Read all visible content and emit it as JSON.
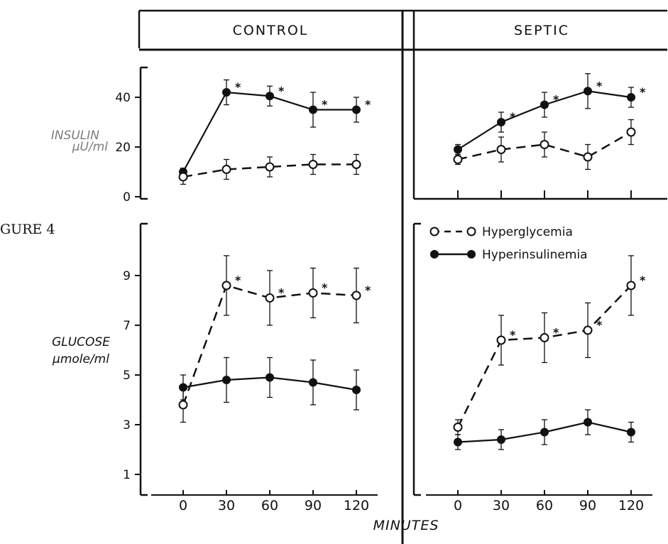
{
  "figure_label": "GURE 4",
  "panels": [
    {
      "header": "CONTROL"
    },
    {
      "header": "SEPTIC"
    }
  ],
  "top_ylabel": [
    "INSULIN",
    "µU/ml"
  ],
  "bottom_ylabel": [
    "GLUCOSE",
    "µmole/ml"
  ],
  "xlabel": "MINUTES",
  "legend": [
    {
      "label": "Hyperglycemia",
      "marker": "open",
      "line": "dashed"
    },
    {
      "label": "Hyperinsulinemia",
      "marker": "filled",
      "line": "solid"
    }
  ],
  "chart_data": [
    {
      "type": "line",
      "panel": "CONTROL",
      "row": "insulin",
      "x": [
        0,
        30,
        60,
        90,
        120
      ],
      "x_ticks": [
        0,
        30,
        60,
        90,
        120
      ],
      "ylim": [
        0,
        50
      ],
      "y_ticks": [
        0,
        20,
        40
      ],
      "y_tick_labels": [
        "0",
        "20",
        "40"
      ],
      "series": [
        {
          "name": "Hyperinsulinemia",
          "values": [
            10,
            42,
            40.5,
            35,
            35
          ],
          "err": [
            1.5,
            5,
            4,
            7,
            5
          ],
          "sig": [
            false,
            true,
            true,
            true,
            true
          ]
        },
        {
          "name": "Hyperglycemia",
          "values": [
            8,
            11,
            12,
            13,
            13
          ],
          "err": [
            3,
            4,
            4,
            4,
            4
          ],
          "sig": [
            false,
            false,
            false,
            false,
            false
          ]
        }
      ]
    },
    {
      "type": "line",
      "panel": "SEPTIC",
      "row": "insulin",
      "x": [
        0,
        30,
        60,
        90,
        120
      ],
      "x_ticks": [
        0,
        30,
        60,
        90,
        120
      ],
      "ylim": [
        0,
        50
      ],
      "y_ticks": [
        0,
        20,
        40
      ],
      "y_tick_labels": [
        "0",
        "20",
        "40"
      ],
      "series": [
        {
          "name": "Hyperinsulinemia",
          "values": [
            19,
            30,
            37,
            42.5,
            40
          ],
          "err": [
            2,
            4,
            5,
            7,
            4
          ],
          "sig": [
            false,
            true,
            true,
            true,
            true
          ]
        },
        {
          "name": "Hyperglycemia",
          "values": [
            15,
            19,
            21,
            16,
            26
          ],
          "err": [
            2,
            5,
            5,
            5,
            5
          ],
          "sig": [
            false,
            false,
            false,
            false,
            false
          ]
        }
      ]
    },
    {
      "type": "line",
      "panel": "CONTROL",
      "row": "glucose",
      "x": [
        0,
        30,
        60,
        90,
        120
      ],
      "x_ticks": [
        0,
        30,
        60,
        90,
        120
      ],
      "ylim": [
        0.6,
        10.6
      ],
      "y_ticks": [
        1,
        3,
        5,
        7,
        9
      ],
      "y_tick_labels": [
        "1",
        "3",
        "5",
        "7",
        "9"
      ],
      "series": [
        {
          "name": "Hyperglycemia",
          "values": [
            3.8,
            8.6,
            8.1,
            8.3,
            8.2
          ],
          "err": [
            0.7,
            1.2,
            1.1,
            1.0,
            1.1
          ],
          "sig": [
            false,
            true,
            true,
            true,
            true
          ]
        },
        {
          "name": "Hyperinsulinemia",
          "values": [
            4.5,
            4.8,
            4.9,
            4.7,
            4.4
          ],
          "err": [
            0.5,
            0.9,
            0.8,
            0.9,
            0.8
          ],
          "sig": [
            false,
            false,
            false,
            false,
            false
          ]
        }
      ]
    },
    {
      "type": "line",
      "panel": "SEPTIC",
      "row": "glucose",
      "x": [
        0,
        30,
        60,
        90,
        120
      ],
      "x_ticks": [
        0,
        30,
        60,
        90,
        120
      ],
      "ylim": [
        0.6,
        10.6
      ],
      "y_ticks": [
        1,
        3,
        5,
        7,
        9
      ],
      "y_tick_labels": [
        "1",
        "3",
        "5",
        "7",
        "9"
      ],
      "series": [
        {
          "name": "Hyperglycemia",
          "values": [
            2.9,
            6.4,
            6.5,
            6.8,
            8.6
          ],
          "err": [
            0.3,
            1.0,
            1.0,
            1.1,
            1.2
          ],
          "sig": [
            false,
            true,
            true,
            true,
            true
          ]
        },
        {
          "name": "Hyperinsulinemia",
          "values": [
            2.3,
            2.4,
            2.7,
            3.1,
            2.7
          ],
          "err": [
            0.3,
            0.4,
            0.5,
            0.5,
            0.4
          ],
          "sig": [
            false,
            false,
            false,
            false,
            false
          ]
        }
      ]
    }
  ]
}
